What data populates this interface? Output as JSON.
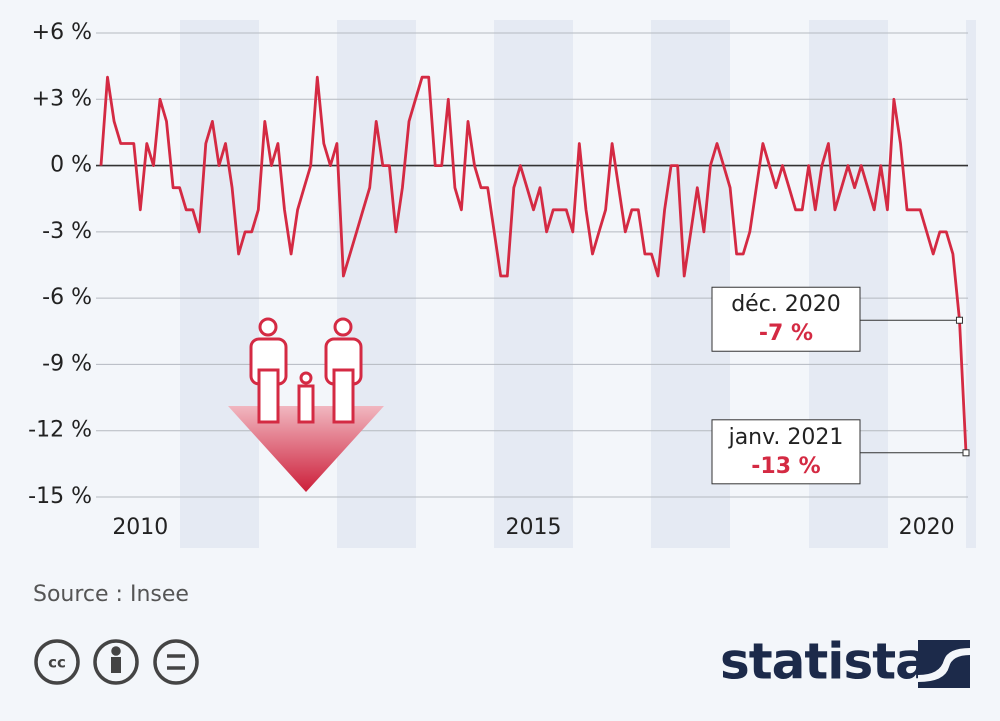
{
  "chart_data": {
    "type": "line",
    "x": [
      2010,
      2010.083,
      2010.167,
      2010.25,
      2010.333,
      2010.417,
      2010.5,
      2010.583,
      2010.667,
      2010.75,
      2010.833,
      2010.917,
      2011,
      2011.083,
      2011.167,
      2011.25,
      2011.333,
      2011.417,
      2011.5,
      2011.583,
      2011.667,
      2011.75,
      2011.833,
      2011.917,
      2012,
      2012.083,
      2012.167,
      2012.25,
      2012.333,
      2012.417,
      2012.5,
      2012.583,
      2012.667,
      2012.75,
      2012.833,
      2012.917,
      2013,
      2013.083,
      2013.167,
      2013.25,
      2013.333,
      2013.417,
      2013.5,
      2013.583,
      2013.667,
      2013.75,
      2013.833,
      2013.917,
      2014,
      2014.083,
      2014.167,
      2014.25,
      2014.333,
      2014.417,
      2014.5,
      2014.583,
      2014.667,
      2014.75,
      2014.833,
      2014.917,
      2015,
      2015.083,
      2015.167,
      2015.25,
      2015.333,
      2015.417,
      2015.5,
      2015.583,
      2015.667,
      2015.75,
      2015.833,
      2015.917,
      2016,
      2016.083,
      2016.167,
      2016.25,
      2016.333,
      2016.417,
      2016.5,
      2016.583,
      2016.667,
      2016.75,
      2016.833,
      2016.917,
      2017,
      2017.083,
      2017.167,
      2017.25,
      2017.333,
      2017.417,
      2017.5,
      2017.583,
      2017.667,
      2017.75,
      2017.833,
      2017.917,
      2018,
      2018.083,
      2018.167,
      2018.25,
      2018.333,
      2018.417,
      2018.5,
      2018.583,
      2018.667,
      2018.75,
      2018.833,
      2018.917,
      2019,
      2019.083,
      2019.167,
      2019.25,
      2019.333,
      2019.417,
      2019.5,
      2019.583,
      2019.667,
      2019.75,
      2019.833,
      2019.917,
      2020,
      2020.083,
      2020.167,
      2020.25,
      2020.333,
      2020.417,
      2020.5,
      2020.583,
      2020.667,
      2020.75,
      2020.833,
      2020.917,
      2021
    ],
    "series": [
      {
        "color": "#d42a43",
        "values": [
          0,
          4,
          2,
          1,
          1,
          1,
          -2,
          1,
          0,
          3,
          2,
          -1,
          -1,
          -2,
          -2,
          -3,
          1,
          2,
          0,
          1,
          -1,
          -4,
          -3,
          -3,
          -2,
          2,
          0,
          1,
          -2,
          -4,
          -2,
          -1,
          0,
          4,
          1,
          0,
          1,
          -5,
          -4,
          -3,
          -2,
          -1,
          2,
          0,
          0,
          -3,
          -1,
          2,
          3,
          4,
          4,
          0,
          0,
          3,
          -1,
          -2,
          2,
          0,
          -1,
          -1,
          -3,
          -5,
          -5,
          -1,
          0,
          -1,
          -2,
          -1,
          -3,
          -2,
          -2,
          -2,
          -3,
          1,
          -2,
          -4,
          -3,
          -2,
          1,
          -1,
          -3,
          -2,
          -2,
          -4,
          -4,
          -5,
          -2,
          0,
          0,
          -5,
          -3,
          -1,
          -3,
          0,
          1,
          0,
          -1,
          -4,
          -4,
          -3,
          -1,
          1,
          0,
          -1,
          0,
          -1,
          -2,
          -2,
          0,
          -2,
          0,
          1,
          -2,
          -1,
          0,
          -1,
          0,
          -1,
          -2,
          0,
          -2,
          3,
          1,
          -2,
          -2,
          -2,
          -3,
          -4,
          -3,
          -3,
          -4,
          -7,
          -13
        ]
      }
    ],
    "xlim": [
      2010,
      2021
    ],
    "xticks": [
      {
        "value": 2010.5,
        "label": "2010"
      },
      {
        "value": 2015.5,
        "label": "2015"
      },
      {
        "value": 2020.5,
        "label": "2020"
      }
    ],
    "ylim": [
      -15,
      6
    ],
    "yticks": [
      {
        "value": 6,
        "label": "+6 %"
      },
      {
        "value": 3,
        "label": "+3 %"
      },
      {
        "value": 0,
        "label": "0 %"
      },
      {
        "value": -3,
        "label": "-3 %"
      },
      {
        "value": -6,
        "label": "-6 %"
      },
      {
        "value": -9,
        "label": "-9 %"
      },
      {
        "value": -12,
        "label": "-12 %"
      },
      {
        "value": -15,
        "label": "-15 %"
      }
    ],
    "grid": true,
    "annotations": [
      {
        "index": 131,
        "label": "déc. 2020",
        "text": "-7 %"
      },
      {
        "index": 132,
        "label": "janv. 2021",
        "text": "-13 %"
      }
    ],
    "source": "Source : Insee",
    "brand": "statista"
  }
}
